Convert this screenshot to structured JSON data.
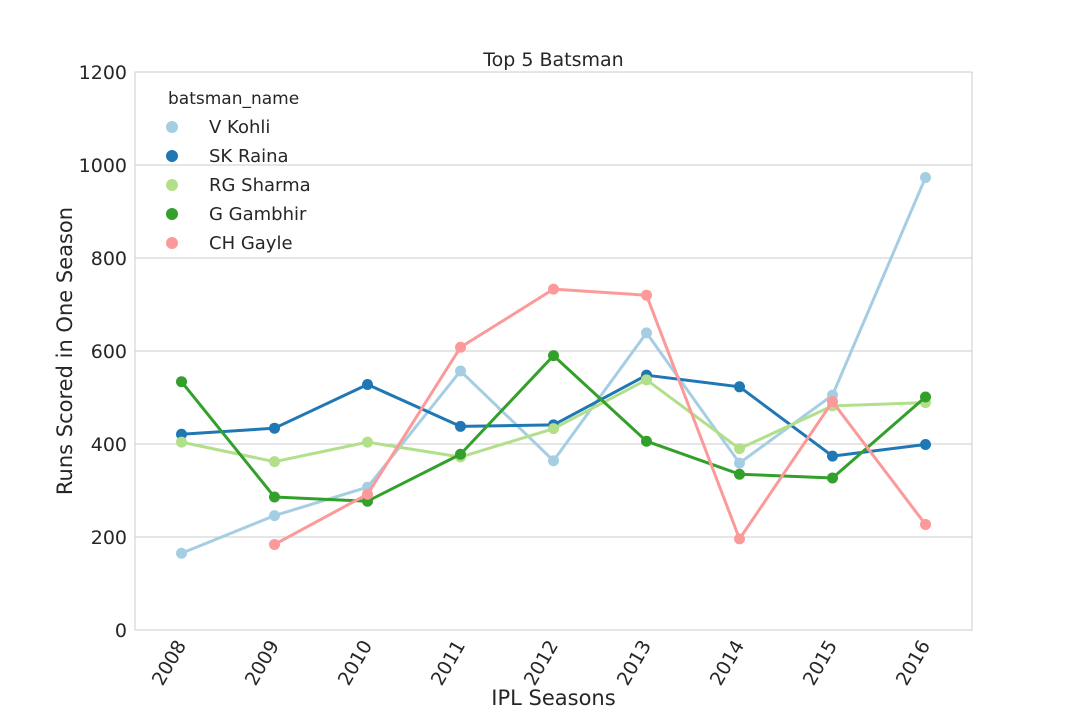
{
  "chart_data": {
    "type": "line",
    "title": "Top 5 Batsman",
    "xlabel": "IPL Seasons",
    "ylabel": "Runs Scored in One Season",
    "categories": [
      "2008",
      "2009",
      "2010",
      "2011",
      "2012",
      "2013",
      "2014",
      "2015",
      "2016"
    ],
    "ylim": [
      0,
      1200
    ],
    "yticks": [
      0,
      200,
      400,
      600,
      800,
      1000,
      1200
    ],
    "grid": true,
    "legend": {
      "title": "batsman_name",
      "placement": "top-left"
    },
    "series": [
      {
        "name": "V Kohli",
        "color": "#a6cee3",
        "values": [
          165,
          246,
          307,
          557,
          364,
          639,
          359,
          505,
          973
        ]
      },
      {
        "name": "SK Raina",
        "color": "#1f78b4",
        "values": [
          421,
          434,
          528,
          438,
          441,
          548,
          523,
          374,
          399
        ]
      },
      {
        "name": "RG Sharma",
        "color": "#b2df8a",
        "values": [
          404,
          362,
          404,
          372,
          433,
          538,
          390,
          482,
          489
        ]
      },
      {
        "name": "G Gambhir",
        "color": "#33a02c",
        "values": [
          534,
          286,
          277,
          378,
          590,
          406,
          335,
          327,
          501
        ]
      },
      {
        "name": "CH Gayle",
        "color": "#fb9a99",
        "values": [
          null,
          184,
          292,
          608,
          733,
          720,
          196,
          491,
          227
        ]
      }
    ]
  }
}
